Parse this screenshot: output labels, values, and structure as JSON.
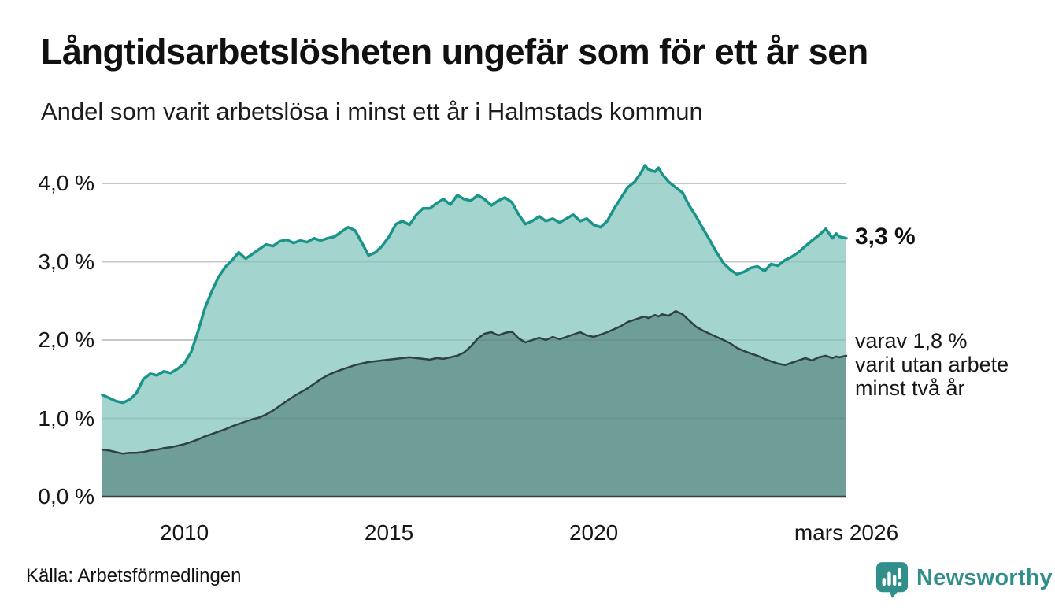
{
  "colors": {
    "background": "#ffffff",
    "text": "#111111",
    "teal_line": "#1a948a",
    "teal_fill": "#a3d4cd",
    "dark_line": "#2e4341",
    "dark_fill": "#6f9e99",
    "grid": "#d9d9d9",
    "axis": "#3d3d3d",
    "brand": "#318e8b"
  },
  "source": {
    "label": "Källa: Arbetsförmedlingen"
  },
  "branding": {
    "name": "Newsworthy"
  },
  "chart_data": {
    "type": "area",
    "title": "Långtidsarbetslösheten ungefär som för ett år sen",
    "subtitle": "Andel som varit arbetslösa i minst ett år i Halmstads kommun",
    "unit": "%",
    "grid": "horizontal",
    "legend_position": "none",
    "xlim": [
      2008.0,
      2026.17
    ],
    "ylim": [
      0,
      4.4
    ],
    "yticks": [
      {
        "v": 0.0,
        "label": "0,0 %"
      },
      {
        "v": 1.0,
        "label": "1,0 %"
      },
      {
        "v": 2.0,
        "label": "2,0 %"
      },
      {
        "v": 3.0,
        "label": "3,0 %"
      },
      {
        "v": 4.0,
        "label": "4,0 %"
      }
    ],
    "xticks": [
      {
        "v": 2010.0,
        "label": "2010"
      },
      {
        "v": 2015.0,
        "label": "2015"
      },
      {
        "v": 2020.0,
        "label": "2020"
      },
      {
        "v": 2026.17,
        "label": "mars 2026"
      }
    ],
    "annotations": {
      "latest_total": "3,3 %",
      "sub_lines": [
        "varav 1,8 %",
        "varit utan arbete",
        "minst två år"
      ]
    },
    "x": [
      2008.0,
      2008.17,
      2008.33,
      2008.5,
      2008.67,
      2008.83,
      2009.0,
      2009.17,
      2009.33,
      2009.5,
      2009.67,
      2009.83,
      2010.0,
      2010.17,
      2010.33,
      2010.5,
      2010.67,
      2010.83,
      2011.0,
      2011.17,
      2011.33,
      2011.5,
      2011.67,
      2011.83,
      2012.0,
      2012.17,
      2012.33,
      2012.5,
      2012.67,
      2012.83,
      2013.0,
      2013.17,
      2013.33,
      2013.5,
      2013.67,
      2013.83,
      2014.0,
      2014.17,
      2014.33,
      2014.5,
      2014.67,
      2014.83,
      2015.0,
      2015.17,
      2015.33,
      2015.5,
      2015.67,
      2015.83,
      2016.0,
      2016.17,
      2016.33,
      2016.5,
      2016.67,
      2016.83,
      2017.0,
      2017.17,
      2017.33,
      2017.5,
      2017.67,
      2017.83,
      2018.0,
      2018.17,
      2018.33,
      2018.5,
      2018.67,
      2018.83,
      2019.0,
      2019.17,
      2019.33,
      2019.5,
      2019.67,
      2019.83,
      2020.0,
      2020.17,
      2020.33,
      2020.5,
      2020.67,
      2020.83,
      2021.0,
      2021.17,
      2021.25,
      2021.33,
      2021.5,
      2021.58,
      2021.67,
      2021.83,
      2022.0,
      2022.17,
      2022.33,
      2022.5,
      2022.67,
      2022.83,
      2023.0,
      2023.17,
      2023.33,
      2023.5,
      2023.67,
      2023.83,
      2024.0,
      2024.17,
      2024.33,
      2024.5,
      2024.67,
      2024.83,
      2025.0,
      2025.17,
      2025.33,
      2025.5,
      2025.67,
      2025.83,
      2025.92,
      2026.0,
      2026.17
    ],
    "series": [
      {
        "name": "Andel som varit arbetslösa i minst ett år",
        "line_color": "#1a948a",
        "fill_color": "#a3d4cd",
        "line_width": 3.5,
        "end_value_label": "3,3 %",
        "values": [
          1.3,
          1.26,
          1.22,
          1.2,
          1.24,
          1.32,
          1.5,
          1.57,
          1.55,
          1.6,
          1.58,
          1.63,
          1.7,
          1.85,
          2.1,
          2.4,
          2.62,
          2.8,
          2.93,
          3.02,
          3.12,
          3.04,
          3.1,
          3.16,
          3.22,
          3.2,
          3.26,
          3.28,
          3.24,
          3.27,
          3.25,
          3.3,
          3.27,
          3.3,
          3.32,
          3.38,
          3.44,
          3.4,
          3.25,
          3.08,
          3.12,
          3.2,
          3.32,
          3.48,
          3.52,
          3.47,
          3.6,
          3.68,
          3.68,
          3.75,
          3.8,
          3.73,
          3.85,
          3.8,
          3.78,
          3.85,
          3.8,
          3.72,
          3.78,
          3.82,
          3.76,
          3.6,
          3.48,
          3.52,
          3.58,
          3.52,
          3.55,
          3.5,
          3.55,
          3.6,
          3.52,
          3.55,
          3.47,
          3.44,
          3.52,
          3.68,
          3.82,
          3.95,
          4.02,
          4.15,
          4.23,
          4.18,
          4.15,
          4.2,
          4.12,
          4.02,
          3.95,
          3.88,
          3.72,
          3.58,
          3.42,
          3.28,
          3.12,
          2.98,
          2.9,
          2.84,
          2.87,
          2.92,
          2.94,
          2.88,
          2.97,
          2.95,
          3.02,
          3.06,
          3.12,
          3.2,
          3.27,
          3.34,
          3.42,
          3.3,
          3.36,
          3.32,
          3.3
        ]
      },
      {
        "name": "varav utan arbete minst två år",
        "line_color": "#2e4341",
        "fill_color": "#6f9e99",
        "line_width": 2.5,
        "end_value_label": "varav 1,8 %",
        "values": [
          0.6,
          0.59,
          0.57,
          0.55,
          0.56,
          0.56,
          0.57,
          0.59,
          0.6,
          0.62,
          0.63,
          0.65,
          0.67,
          0.7,
          0.73,
          0.77,
          0.8,
          0.83,
          0.86,
          0.9,
          0.93,
          0.96,
          0.99,
          1.01,
          1.05,
          1.1,
          1.16,
          1.22,
          1.28,
          1.33,
          1.38,
          1.44,
          1.5,
          1.55,
          1.59,
          1.62,
          1.65,
          1.68,
          1.7,
          1.72,
          1.73,
          1.74,
          1.75,
          1.76,
          1.77,
          1.78,
          1.77,
          1.76,
          1.75,
          1.77,
          1.76,
          1.78,
          1.8,
          1.84,
          1.92,
          2.02,
          2.08,
          2.1,
          2.06,
          2.09,
          2.11,
          2.02,
          1.97,
          2.0,
          2.03,
          2.0,
          2.04,
          2.01,
          2.04,
          2.07,
          2.1,
          2.06,
          2.04,
          2.07,
          2.1,
          2.14,
          2.18,
          2.23,
          2.26,
          2.29,
          2.3,
          2.28,
          2.32,
          2.3,
          2.33,
          2.31,
          2.37,
          2.33,
          2.25,
          2.17,
          2.12,
          2.08,
          2.04,
          2.0,
          1.96,
          1.9,
          1.86,
          1.83,
          1.8,
          1.76,
          1.73,
          1.7,
          1.68,
          1.71,
          1.74,
          1.77,
          1.74,
          1.78,
          1.8,
          1.77,
          1.79,
          1.78,
          1.8
        ]
      }
    ]
  }
}
